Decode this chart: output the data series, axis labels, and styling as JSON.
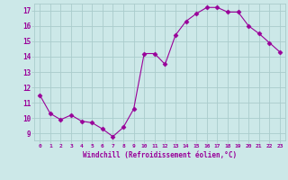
{
  "x": [
    0,
    1,
    2,
    3,
    4,
    5,
    6,
    7,
    8,
    9,
    10,
    11,
    12,
    13,
    14,
    15,
    16,
    17,
    18,
    19,
    20,
    21,
    22,
    23
  ],
  "y": [
    11.5,
    10.3,
    9.9,
    10.2,
    9.8,
    9.7,
    9.3,
    8.8,
    9.4,
    10.6,
    14.2,
    14.2,
    13.5,
    15.4,
    16.3,
    16.8,
    17.2,
    17.2,
    16.9,
    16.9,
    16.0,
    15.5,
    14.9,
    14.3
  ],
  "line_color": "#990099",
  "marker": "D",
  "marker_size": 2.5,
  "bg_color": "#cce8e8",
  "grid_color": "#aacccc",
  "xlabel": "Windchill (Refroidissement éolien,°C)",
  "xlabel_color": "#990099",
  "ylabel_ticks": [
    9,
    10,
    11,
    12,
    13,
    14,
    15,
    16,
    17
  ],
  "xlim": [
    -0.5,
    23.5
  ],
  "ylim": [
    8.55,
    17.45
  ],
  "tick_label_color": "#990099"
}
